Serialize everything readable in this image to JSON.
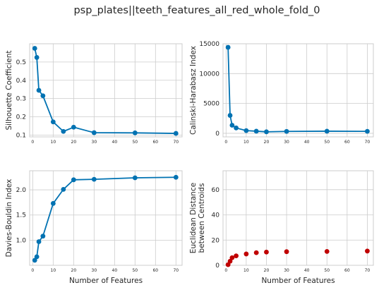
{
  "suptitle": "psp_plates||teeth_features_all_red_whole_fold_0",
  "chart_data": [
    {
      "type": "line",
      "panel": "top-left",
      "xlabel": "",
      "ylabel": "Silhouette Coefficient",
      "xlim": [
        -1.5,
        73
      ],
      "ylim": [
        0.09,
        0.6
      ],
      "xticks": [
        0,
        10,
        20,
        30,
        40,
        50,
        60,
        70
      ],
      "xtick_labels": [
        "0",
        "10",
        "20",
        "30",
        "40",
        "50",
        "60",
        "70"
      ],
      "yticks": [
        0.1,
        0.2,
        0.3,
        0.4,
        0.5
      ],
      "ytick_labels": [
        "0.1",
        "0.2",
        "0.3",
        "0.4",
        "0.5"
      ],
      "grid": true,
      "color": "#0072b2",
      "series": [
        {
          "x": [
            1,
            2,
            3,
            5,
            10,
            15,
            20,
            30,
            50,
            70
          ],
          "y": [
            0.575,
            0.525,
            0.345,
            0.315,
            0.172,
            0.12,
            0.143,
            0.113,
            0.112,
            0.109
          ]
        }
      ]
    },
    {
      "type": "line",
      "panel": "top-right",
      "xlabel": "",
      "ylabel": "Calinski-Harabasz Index",
      "xlim": [
        -1.5,
        73
      ],
      "ylim": [
        -600,
        15000
      ],
      "xticks": [
        0,
        10,
        20,
        30,
        40,
        50,
        60,
        70
      ],
      "xtick_labels": [
        "0",
        "10",
        "20",
        "30",
        "40",
        "50",
        "60",
        "70"
      ],
      "yticks": [
        0,
        5000,
        10000,
        15000
      ],
      "ytick_labels": [
        "0",
        "5000",
        "10000",
        "15000"
      ],
      "grid": true,
      "color": "#0072b2",
      "series": [
        {
          "x": [
            1,
            2,
            3,
            5,
            10,
            15,
            20,
            30,
            50,
            70
          ],
          "y": [
            14400,
            3000,
            1350,
            900,
            450,
            350,
            250,
            320,
            350,
            330
          ]
        }
      ]
    },
    {
      "type": "line",
      "panel": "bottom-left",
      "xlabel": "Number of Features",
      "ylabel": "Davies-Bouldin Index",
      "xlim": [
        -1.5,
        73
      ],
      "ylim": [
        0.5,
        2.38
      ],
      "xticks": [
        0,
        10,
        20,
        30,
        40,
        50,
        60,
        70
      ],
      "xtick_labels": [
        "0",
        "10",
        "20",
        "30",
        "40",
        "50",
        "60",
        "70"
      ],
      "yticks": [
        1.0,
        1.5,
        2.0
      ],
      "ytick_labels": [
        "1.0",
        "1.5",
        "2.0"
      ],
      "grid": true,
      "color": "#0072b2",
      "series": [
        {
          "x": [
            1,
            2,
            3,
            5,
            10,
            15,
            20,
            30,
            50,
            70
          ],
          "y": [
            0.6,
            0.67,
            0.97,
            1.08,
            1.73,
            2.01,
            2.2,
            2.21,
            2.24,
            2.25
          ]
        }
      ]
    },
    {
      "type": "scatter",
      "panel": "bottom-right",
      "xlabel": "Number of Features",
      "ylabel": "Euclidean Distance\nbetween Centroids",
      "xlim": [
        -1.5,
        73
      ],
      "ylim": [
        0,
        75
      ],
      "xticks": [
        0,
        10,
        20,
        30,
        40,
        50,
        60,
        70
      ],
      "xtick_labels": [
        "0",
        "10",
        "20",
        "30",
        "40",
        "50",
        "60",
        "70"
      ],
      "yticks": [
        0,
        20,
        40,
        60
      ],
      "ytick_labels": [
        "0",
        "20",
        "40",
        "60"
      ],
      "grid": true,
      "color": "#c00000",
      "series": [
        {
          "x": [
            1,
            2,
            3,
            5,
            10,
            15,
            20,
            30,
            50,
            70
          ],
          "y": [
            0.5,
            3.2,
            6,
            7.5,
            9,
            10,
            10.5,
            10.8,
            11,
            11.3
          ]
        }
      ]
    }
  ]
}
